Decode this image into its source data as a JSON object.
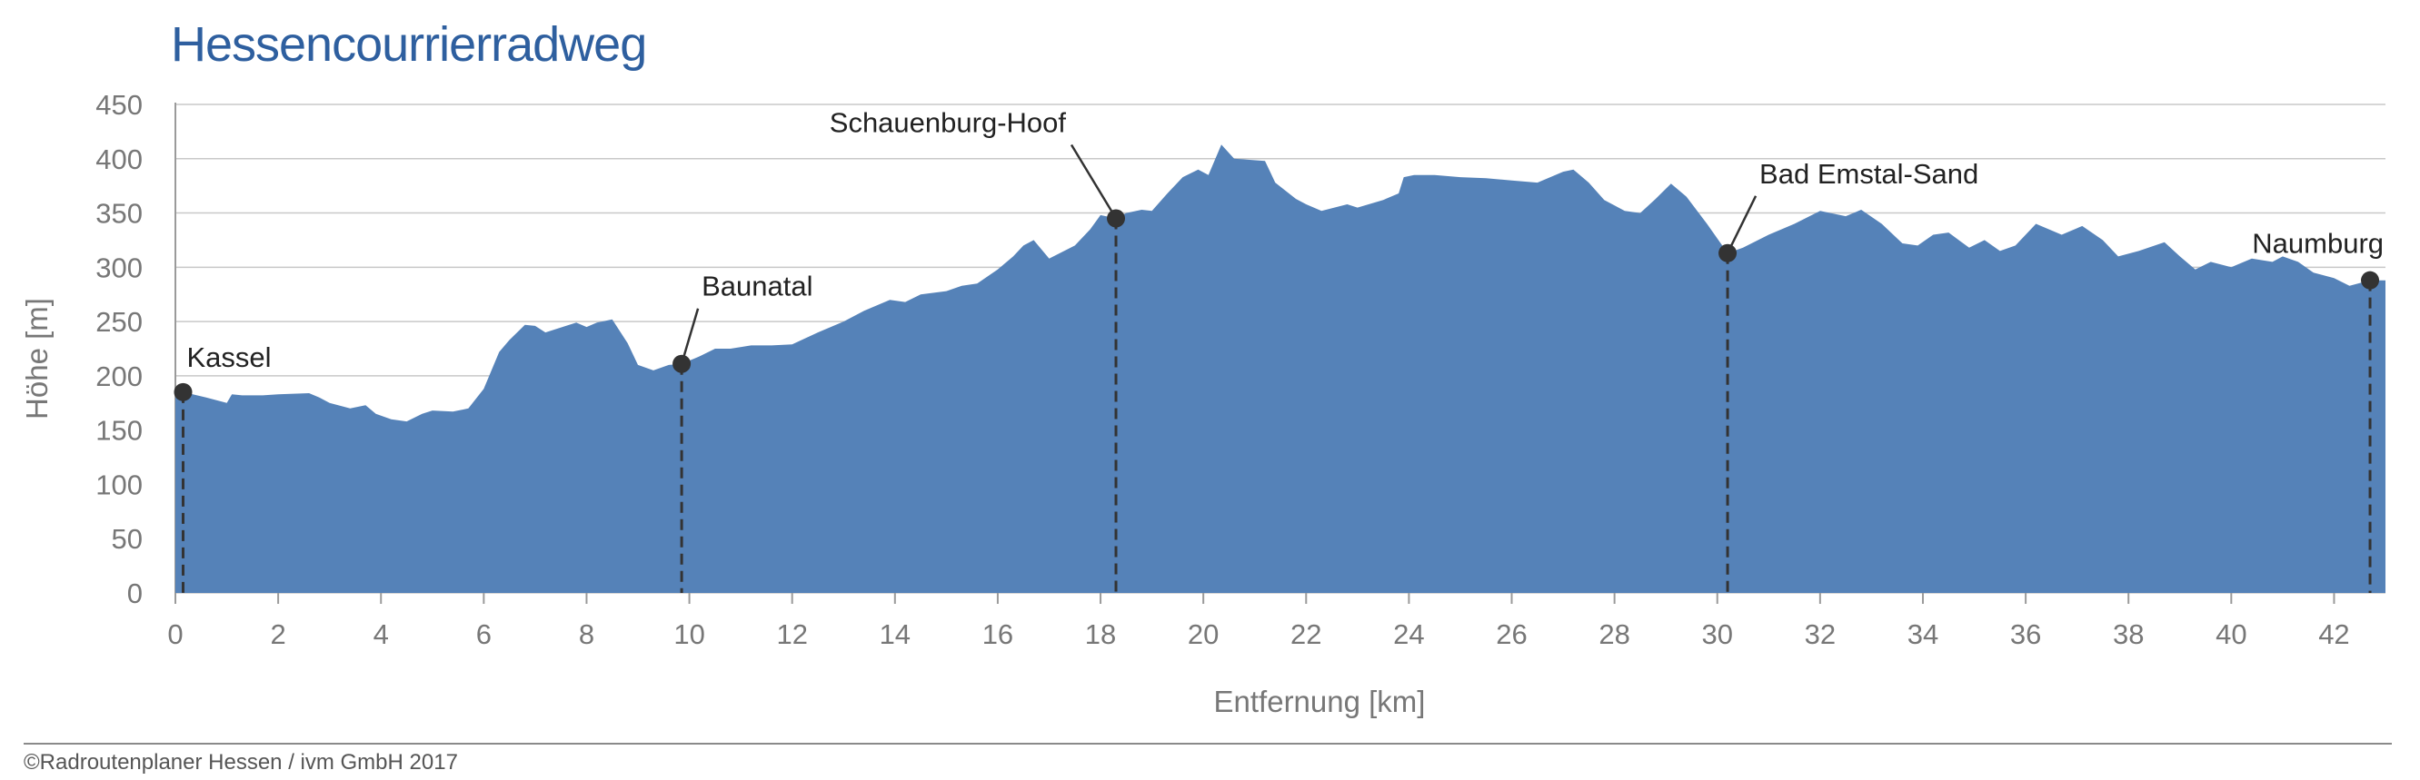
{
  "chart_data": {
    "type": "area",
    "title": "Hessencourrierradweg",
    "xlabel": "Entfernung [km]",
    "ylabel": "Höhe [m]",
    "xlim": [
      0,
      43
    ],
    "ylim": [
      0,
      450
    ],
    "x_ticks": [
      0,
      2,
      4,
      6,
      8,
      10,
      12,
      14,
      16,
      18,
      20,
      22,
      24,
      26,
      28,
      30,
      32,
      34,
      36,
      38,
      40,
      42
    ],
    "y_ticks": [
      0,
      50,
      100,
      150,
      200,
      250,
      300,
      350,
      400,
      450
    ],
    "grid": "horizontal",
    "colors": {
      "area": "#5582b8",
      "title": "#2e5f9f",
      "marker": "#333333",
      "grid": "#c8c8c8"
    },
    "profile": {
      "x": [
        0,
        0.15,
        0.6,
        1.0,
        1.1,
        1.3,
        1.7,
        2.0,
        2.6,
        2.8,
        3.0,
        3.4,
        3.7,
        3.9,
        4.2,
        4.5,
        4.8,
        5.0,
        5.4,
        5.7,
        6.0,
        6.3,
        6.5,
        6.8,
        7.0,
        7.2,
        7.6,
        7.8,
        8.0,
        8.2,
        8.5,
        8.8,
        9.0,
        9.3,
        9.6,
        9.85,
        10.2,
        10.5,
        10.8,
        11.2,
        11.6,
        12.0,
        12.5,
        13.0,
        13.4,
        13.9,
        14.2,
        14.5,
        15.0,
        15.3,
        15.6,
        16.0,
        16.3,
        16.5,
        16.7,
        17.0,
        17.5,
        17.8,
        18.0,
        18.3,
        18.5,
        18.8,
        19.0,
        19.3,
        19.6,
        19.9,
        20.1,
        20.35,
        20.6,
        21.2,
        21.4,
        21.8,
        22.0,
        22.3,
        22.8,
        23.0,
        23.5,
        23.8,
        23.9,
        24.1,
        24.5,
        25.0,
        25.5,
        26.0,
        26.5,
        27.0,
        27.2,
        27.5,
        27.8,
        28.2,
        28.5,
        28.8,
        29.1,
        29.4,
        29.8,
        30.2,
        30.5,
        31.0,
        31.5,
        32.0,
        32.5,
        32.8,
        33.2,
        33.6,
        33.9,
        34.2,
        34.5,
        34.9,
        35.2,
        35.5,
        35.8,
        36.2,
        36.7,
        37.1,
        37.5,
        37.8,
        38.2,
        38.7,
        39.0,
        39.3,
        39.6,
        40.0,
        40.4,
        40.8,
        41.0,
        41.3,
        41.6,
        42.0,
        42.3,
        42.7,
        43.0
      ],
      "y": [
        185,
        185,
        180,
        175,
        183,
        182,
        182,
        183,
        184,
        180,
        175,
        170,
        173,
        165,
        160,
        158,
        165,
        168,
        167,
        170,
        188,
        222,
        233,
        247,
        246,
        240,
        246,
        249,
        245,
        249,
        252,
        230,
        210,
        205,
        210,
        211,
        218,
        225,
        225,
        228,
        228,
        229,
        240,
        250,
        260,
        270,
        268,
        275,
        278,
        283,
        285,
        298,
        310,
        320,
        325,
        308,
        320,
        335,
        348,
        345,
        350,
        353,
        352,
        368,
        383,
        390,
        385,
        413,
        400,
        398,
        378,
        363,
        358,
        352,
        358,
        355,
        362,
        368,
        383,
        385,
        385,
        383,
        382,
        380,
        378,
        388,
        390,
        378,
        362,
        352,
        350,
        363,
        377,
        365,
        340,
        313,
        318,
        330,
        340,
        352,
        347,
        353,
        340,
        322,
        320,
        330,
        332,
        318,
        325,
        315,
        320,
        340,
        330,
        338,
        325,
        310,
        315,
        323,
        310,
        298,
        305,
        300,
        308,
        305,
        310,
        305,
        295,
        290,
        283,
        288,
        288
      ]
    },
    "markers": [
      {
        "label": "Kassel",
        "x": 0.15,
        "y": 185
      },
      {
        "label": "Baunatal",
        "x": 9.85,
        "y": 211
      },
      {
        "label": "Schauenburg-Hoof",
        "x": 18.3,
        "y": 345
      },
      {
        "label": "Bad Emstal-Sand",
        "x": 30.2,
        "y": 313
      },
      {
        "label": "Naumburg",
        "x": 42.7,
        "y": 288
      }
    ]
  },
  "footer": {
    "copyright": "©Radroutenplaner Hessen / ivm GmbH 2017"
  }
}
